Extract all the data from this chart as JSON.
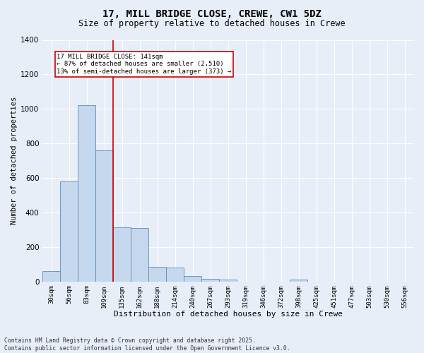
{
  "title_line1": "17, MILL BRIDGE CLOSE, CREWE, CW1 5DZ",
  "title_line2": "Size of property relative to detached houses in Crewe",
  "xlabel": "Distribution of detached houses by size in Crewe",
  "ylabel": "Number of detached properties",
  "categories": [
    "30sqm",
    "56sqm",
    "83sqm",
    "109sqm",
    "135sqm",
    "162sqm",
    "188sqm",
    "214sqm",
    "240sqm",
    "267sqm",
    "293sqm",
    "319sqm",
    "346sqm",
    "372sqm",
    "398sqm",
    "425sqm",
    "451sqm",
    "477sqm",
    "503sqm",
    "530sqm",
    "556sqm"
  ],
  "values": [
    60,
    580,
    1020,
    760,
    315,
    310,
    85,
    80,
    30,
    15,
    10,
    0,
    0,
    0,
    10,
    0,
    0,
    0,
    0,
    0,
    0
  ],
  "bar_color": "#c5d8ee",
  "bar_edge_color": "#5b8db8",
  "property_line_color": "#cc0000",
  "annotation_box_color": "#ffffff",
  "annotation_box_edge_color": "#cc0000",
  "ylim": [
    0,
    1400
  ],
  "yticks": [
    0,
    200,
    400,
    600,
    800,
    1000,
    1200,
    1400
  ],
  "background_color": "#e8eef8",
  "grid_color": "#ffffff",
  "footer_text": "Contains HM Land Registry data © Crown copyright and database right 2025.\nContains public sector information licensed under the Open Government Licence v3.0."
}
